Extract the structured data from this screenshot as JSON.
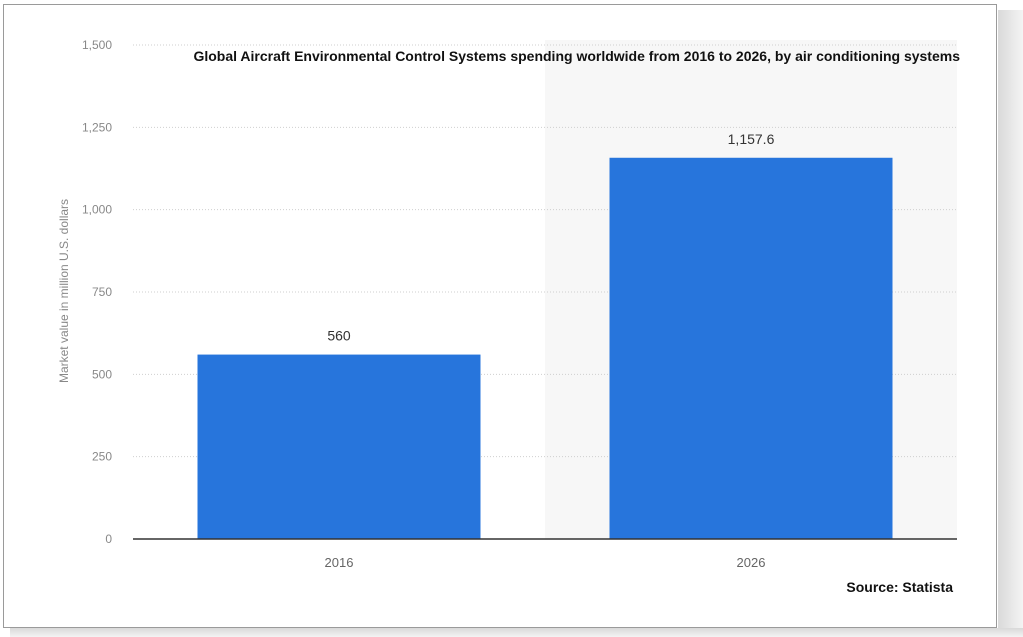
{
  "chart_data": {
    "type": "bar",
    "title": "Global Aircraft Environmental Control Systems spending worldwide from 2016 to 2026, by air conditioning systems",
    "source": "Source: Statista",
    "xlabel": "",
    "ylabel": "Market value in million U.S. dollars",
    "categories": [
      "2016",
      "2026"
    ],
    "values": [
      560,
      1157.6
    ],
    "value_labels": [
      "560",
      "1,157.6"
    ],
    "ylim": [
      0,
      1500
    ],
    "yticks": [
      0,
      250,
      500,
      750,
      1000,
      1250,
      1500
    ],
    "ytick_labels": [
      "0",
      "250",
      "500",
      "750",
      "1,000",
      "1,250",
      "1,500"
    ],
    "grid": true,
    "bar_color": "#2775dc"
  }
}
